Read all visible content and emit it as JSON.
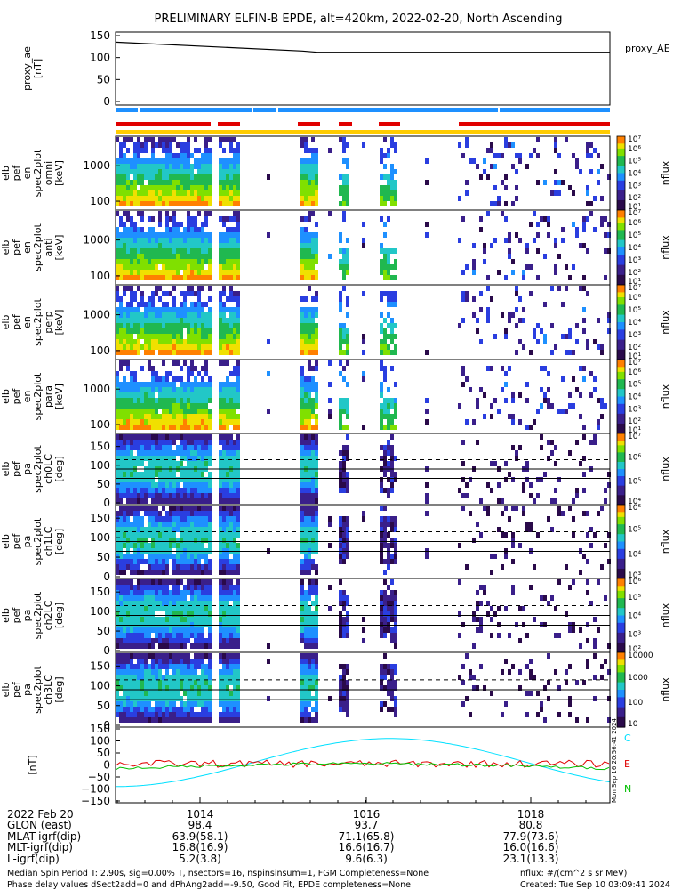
{
  "title": "PRELIMINARY ELFIN-B EPDE, alt=420km, 2022-02-20, North Ascending",
  "chart_data": [
    {
      "type": "line",
      "panel": "proxy_ae",
      "ylabel_lines": [
        "proxy_ae",
        "[nT]"
      ],
      "right_label": "proxy_AE",
      "yticks": [
        "150",
        "100",
        "50",
        "0"
      ],
      "ylim": [
        0,
        150
      ],
      "series": [
        {
          "x": [
            "10:12:35",
            "10:15:05",
            "10:15:25",
            "10:19:35"
          ],
          "y": [
            135,
            115,
            112,
            112
          ]
        }
      ]
    },
    {
      "type": "heatmap",
      "panel": "pef spectrogram (omni)",
      "ylabel_lines": [
        "elb",
        "pef",
        "en",
        "spec2plot",
        "omni",
        "[keV]"
      ],
      "yticks": [
        "1000",
        "100"
      ],
      "colorbar_label": "nflux",
      "colorbar_ticks": [
        "10⁷",
        "10⁶",
        "10⁵",
        "10⁴",
        "10³",
        "10²",
        "10¹"
      ]
    },
    {
      "type": "heatmap",
      "panel": "pef spectrogram (anti)",
      "ylabel_lines": [
        "elb",
        "pef",
        "en",
        "spec2plot",
        "anti",
        "[keV]"
      ],
      "yticks": [
        "1000",
        "100"
      ],
      "colorbar_label": "nflux",
      "colorbar_ticks": [
        "10⁷",
        "10⁶",
        "10⁵",
        "10⁴",
        "10³",
        "10²",
        "10¹"
      ]
    },
    {
      "type": "heatmap",
      "panel": "pef spectrogram (perp)",
      "ylabel_lines": [
        "elb",
        "pef",
        "en",
        "spec2plot",
        "perp",
        "[keV]"
      ],
      "yticks": [
        "1000",
        "100"
      ],
      "colorbar_label": "nflux",
      "colorbar_ticks": [
        "10⁷",
        "10⁶",
        "10⁵",
        "10⁴",
        "10³",
        "10²",
        "10¹"
      ]
    },
    {
      "type": "heatmap",
      "panel": "pef spectrogram (para)",
      "ylabel_lines": [
        "elb",
        "pef",
        "en",
        "spec2plot",
        "para",
        "[keV]"
      ],
      "yticks": [
        "1000",
        "100"
      ],
      "colorbar_label": "nflux",
      "colorbar_ticks": [
        "10⁷",
        "10⁶",
        "10⁵",
        "10⁴",
        "10³",
        "10²",
        "10¹"
      ]
    },
    {
      "type": "heatmap",
      "panel": "pa ch0LC",
      "ylabel_lines": [
        "elb",
        "pef",
        "pa",
        "spec2plot",
        "ch0LC",
        "[deg]"
      ],
      "yticks": [
        "150",
        "100",
        "50",
        "0"
      ],
      "ylim": [
        0,
        180
      ],
      "colorbar_label": "nflux",
      "colorbar_ticks": [
        "10⁷",
        "10⁶",
        "10⁵",
        "10⁴"
      ]
    },
    {
      "type": "heatmap",
      "panel": "pa ch1LC",
      "ylabel_lines": [
        "elb",
        "pef",
        "pa",
        "spec2plot",
        "ch1LC",
        "[deg]"
      ],
      "yticks": [
        "150",
        "100",
        "50",
        "0"
      ],
      "ylim": [
        0,
        180
      ],
      "colorbar_label": "nflux",
      "colorbar_ticks": [
        "10⁶",
        "10⁵",
        "10⁴",
        "10³"
      ]
    },
    {
      "type": "heatmap",
      "panel": "pa ch2LC",
      "ylabel_lines": [
        "elb",
        "pef",
        "pa",
        "spec2plot",
        "ch2LC",
        "[deg]"
      ],
      "yticks": [
        "150",
        "100",
        "50",
        "0"
      ],
      "ylim": [
        0,
        180
      ],
      "colorbar_label": "nflux",
      "colorbar_ticks": [
        "10⁶",
        "10⁵",
        "10⁴",
        "10³",
        "10²"
      ]
    },
    {
      "type": "heatmap",
      "panel": "pa ch3LC",
      "ylabel_lines": [
        "elb",
        "pef",
        "pa",
        "spec2plot",
        "ch3LC",
        "[deg]"
      ],
      "yticks": [
        "150",
        "100",
        "50",
        "0"
      ],
      "ylim": [
        0,
        180
      ],
      "colorbar_label": "nflux",
      "colorbar_ticks": [
        "10000",
        "1000",
        "100",
        "10"
      ]
    },
    {
      "type": "line",
      "panel": "magnetic field",
      "ylabel_lines": [
        "[nT]"
      ],
      "yticks": [
        "150",
        "100",
        "50",
        "0",
        "−50",
        "−100",
        "−150"
      ],
      "ylim": [
        -150,
        150
      ],
      "legend": [
        "C",
        "E",
        "N"
      ],
      "colors": {
        "C": "#00e0ff",
        "E": "#e00000",
        "N": "#00c000"
      },
      "timestamp": "Mon Sep 16 20:56:41 2024"
    }
  ],
  "footer": {
    "rows": [
      {
        "label": "2022 Feb 20",
        "values": [
          "1014",
          "1016",
          "1018"
        ]
      },
      {
        "label": "GLON (east)",
        "values": [
          "98.4",
          "93.7",
          "80.8"
        ]
      },
      {
        "label": "MLAT-igrf(dip)",
        "values": [
          "63.9(58.1)",
          "71.1(65.8)",
          "77.9(73.6)"
        ]
      },
      {
        "label": "MLT-igrf(dip)",
        "values": [
          "16.8(16.9)",
          "16.6(16.7)",
          "16.0(16.6)"
        ]
      },
      {
        "label": "L-igrf(dip)",
        "values": [
          "5.2(3.8)",
          "9.6(6.3)",
          "23.1(13.3)"
        ]
      }
    ],
    "note1": "Median Spin Period T: 2.90s, sig=0.00% T, nsectors=16, nspinsinsum=1, FGM Completeness=None",
    "note2": "Phase delay values dSect2add=0 and dPhAng2add=-9.50, Good Fit, EPDE completeness=None",
    "units": "nflux: #/(cm^2 s sr MeV)",
    "created": "Created: Tue Sep 10 03:09:41 2024"
  }
}
